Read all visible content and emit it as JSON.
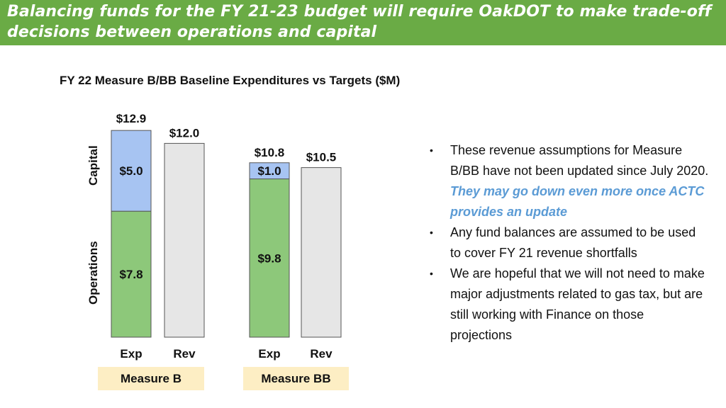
{
  "title": "Balancing funds for the FY 21-23 budget will require OakDOT to make trade-off decisions between operations and capital",
  "chart_data": {
    "type": "bar",
    "title": "FY 22 Measure B/BB Baseline Expenditures vs Targets ($M)",
    "stacked": true,
    "groups": [
      "Measure B",
      "Measure BB"
    ],
    "categories": [
      "Exp",
      "Rev"
    ],
    "side_labels": [
      "Capital",
      "Operations"
    ],
    "bars": [
      {
        "group": "Measure B",
        "category": "Exp",
        "total": 12.9,
        "total_label": "$12.9",
        "segments": [
          {
            "name": "Operations",
            "value": 7.8,
            "label": "$7.8",
            "color": "#8dc87a"
          },
          {
            "name": "Capital",
            "value": 5.0,
            "label": "$5.0",
            "color": "#a7c4f2"
          }
        ]
      },
      {
        "group": "Measure B",
        "category": "Rev",
        "total": 12.0,
        "total_label": "$12.0",
        "segments": [
          {
            "name": "Revenue",
            "value": 12.0,
            "label": "",
            "color": "#e6e6e6"
          }
        ]
      },
      {
        "group": "Measure BB",
        "category": "Exp",
        "total": 10.8,
        "total_label": "$10.8",
        "segments": [
          {
            "name": "Operations",
            "value": 9.8,
            "label": "$9.8",
            "color": "#8dc87a"
          },
          {
            "name": "Capital",
            "value": 1.0,
            "label": "$1.0",
            "color": "#a7c4f2"
          }
        ]
      },
      {
        "group": "Measure BB",
        "category": "Rev",
        "total": 10.5,
        "total_label": "$10.5",
        "segments": [
          {
            "name": "Revenue",
            "value": 10.5,
            "label": "",
            "color": "#e6e6e6"
          }
        ]
      }
    ]
  },
  "bullets": [
    {
      "text": "These revenue assumptions for Measure B/BB have not been updated since July 2020. ",
      "emphasis": "They may go down even more once ACTC provides an update"
    },
    {
      "text": "Any fund balances are assumed to be used to cover FY 21 revenue shortfalls",
      "emphasis": ""
    },
    {
      "text": "We are hopeful that we will not need to make major adjustments related to gas tax, but are still working with Finance on those projections",
      "emphasis": ""
    }
  ],
  "bullet_glyph": "•",
  "colors": {
    "title_bar": "#6aab45",
    "operations": "#8dc87a",
    "capital": "#a7c4f2",
    "revenue": "#e6e6e6",
    "group_label_bg": "#fdeec4",
    "emphasis": "#5b9bd5"
  }
}
